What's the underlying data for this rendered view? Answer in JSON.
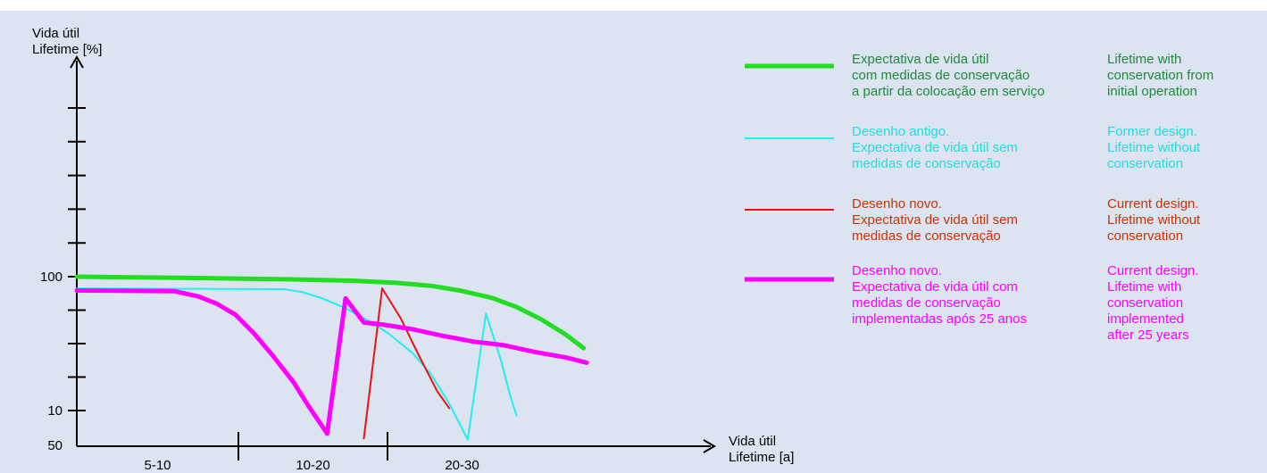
{
  "chart_data": {
    "type": "line",
    "ylabel_lines": [
      "Vida útil",
      "Lifetime [%]"
    ],
    "xlabel_lines": [
      "Vida útil",
      "Lifetime [a]"
    ],
    "yticks_labeled": [
      100,
      50,
      10
    ],
    "xcategories": [
      "5-10",
      "10-20",
      "20-30"
    ],
    "series": [
      {
        "color": "#22dd22",
        "points": [
          [
            0,
            100
          ],
          [
            0.2,
            99.6
          ],
          [
            0.35,
            99.2
          ],
          [
            0.45,
            98.8
          ],
          [
            0.52,
            98.2
          ],
          [
            0.58,
            97.3
          ],
          [
            0.63,
            95.8
          ],
          [
            0.68,
            93.7
          ],
          [
            0.72,
            91.0
          ],
          [
            0.76,
            87.4
          ],
          [
            0.8,
            82.9
          ],
          [
            0.83,
            78.8
          ]
        ]
      },
      {
        "color": "#22eeee",
        "points": [
          [
            0,
            96.5
          ],
          [
            0.2,
            96.4
          ],
          [
            0.34,
            96.3
          ],
          [
            0.37,
            95.4
          ],
          [
            0.4,
            93.7
          ],
          [
            0.44,
            90.7
          ],
          [
            0.48,
            86.7
          ],
          [
            0.51,
            83.2
          ],
          [
            0.55,
            77.3
          ],
          [
            0.58,
            71.1
          ],
          [
            0.61,
            62.4
          ],
          [
            0.64,
            51.7
          ],
          [
            0.67,
            39.0
          ],
          [
            0.695,
            24.7
          ],
          [
            0.71,
            14.3
          ],
          [
            0.72,
            8.5
          ]
        ]
      },
      {
        "color": "#ee1111",
        "points": [
          [
            0.47,
            52.0
          ],
          [
            0.5,
            46.5
          ],
          [
            0.53,
            37.7
          ],
          [
            0.56,
            26.5
          ],
          [
            0.59,
            15.8
          ],
          [
            0.61,
            10.7
          ]
        ]
      },
      {
        "color": "#ff00ff",
        "points": [
          [
            0,
            95.9
          ],
          [
            0.16,
            95.7
          ],
          [
            0.2,
            94.1
          ],
          [
            0.23,
            91.9
          ],
          [
            0.26,
            88.7
          ],
          [
            0.29,
            83.2
          ],
          [
            0.32,
            76.8
          ],
          [
            0.355,
            68.7
          ],
          [
            0.38,
            61.5
          ],
          [
            0.41,
            53.5
          ],
          [
            0.44,
            43.5
          ],
          [
            0.47,
            36.3
          ],
          [
            0.5,
            35.7
          ],
          [
            0.55,
            34.3
          ],
          [
            0.6,
            32.3
          ],
          [
            0.65,
            30.6
          ],
          [
            0.7,
            29.5
          ],
          [
            0.75,
            27.5
          ],
          [
            0.8,
            25.9
          ],
          [
            0.835,
            24.3
          ]
        ]
      }
    ]
  },
  "legend": [
    {
      "color": "#22dd22",
      "pt": "Expectativa de vida útil\ncom medidas de conservação\na partir da colocação em serviço",
      "en": "Lifetime with\nconservation from\ninitial operation",
      "text_color": "#1f8a3c"
    },
    {
      "color": "#22eeee",
      "pt": "Desenho antigo.\nExpectativa de vida útil sem\nmedidas de conservação",
      "en": "Former design.\nLifetime without\nconservation",
      "text_color": "#22dddd"
    },
    {
      "color": "#ee1111",
      "pt": "Desenho novo.\nExpectativa de vida útil sem\nmedidas de conservação",
      "en": "Current design.\nLifetime without\nconservation",
      "text_color": "#cc3300"
    },
    {
      "color": "#ff00ff",
      "pt": "Desenho novo.\nExpectativa de vida útil com\nmedidas de conservação\nimplementadas após 25 anos",
      "en": "Current design.\nLifetime with\nconservation\nimplemented\nafter 25 years",
      "text_color": "#ff00ff"
    }
  ]
}
